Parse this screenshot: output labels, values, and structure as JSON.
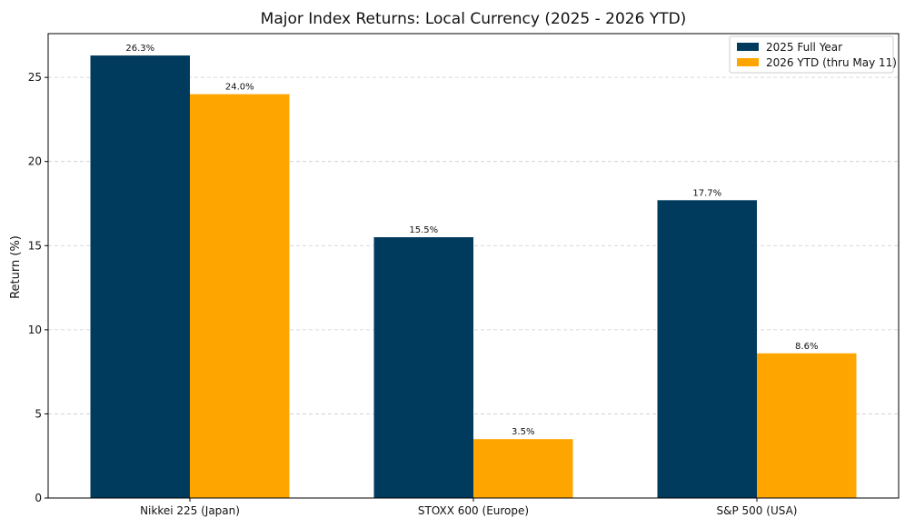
{
  "chart_data": {
    "type": "bar",
    "title": "Major Index Returns: Local Currency (2025 - 2026 YTD)",
    "xlabel": "",
    "ylabel": "Return (%)",
    "ylim": [
      0,
      27.6
    ],
    "yticks": [
      0,
      5,
      10,
      15,
      20,
      25
    ],
    "grid": "y-dashed",
    "legend_position": "top-right",
    "categories": [
      "Nikkei 225 (Japan)",
      "STOXX 600 (Europe)",
      "S&P 500 (USA)"
    ],
    "series": [
      {
        "name": "2025 Full Year",
        "color": "#003a5c",
        "values": [
          26.3,
          15.5,
          17.7
        ],
        "labels": [
          "26.3%",
          "15.5%",
          "17.7%"
        ]
      },
      {
        "name": "2026 YTD (thru May 11)",
        "color": "#ffa500",
        "values": [
          24.0,
          3.5,
          8.6
        ],
        "labels": [
          "24.0%",
          "3.5%",
          "8.6%"
        ]
      }
    ]
  }
}
